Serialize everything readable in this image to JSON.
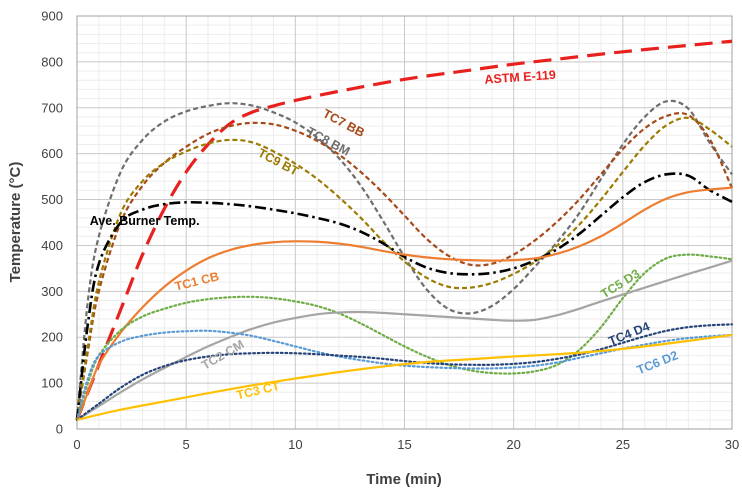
{
  "chart_data": {
    "type": "line",
    "xlabel": "Time (min)",
    "ylabel": "Temperature (°C)",
    "xlim": [
      0,
      30
    ],
    "ylim": [
      0,
      900
    ],
    "xticks": [
      "0",
      "5",
      "10",
      "15",
      "20",
      "25",
      "30"
    ],
    "yticks": [
      "0",
      "100",
      "200",
      "300",
      "400",
      "500",
      "600",
      "700",
      "800",
      "900"
    ],
    "grid": "both-major-minor",
    "series": [
      {
        "name": "ASTM E-119",
        "color": "#e8211e",
        "dash": "long-dash",
        "x": [
          0,
          1,
          2,
          3,
          4,
          5,
          6,
          7,
          8,
          9,
          10,
          12,
          15,
          18,
          20,
          22,
          25,
          28,
          30
        ],
        "y": [
          20,
          140,
          260,
          380,
          480,
          560,
          620,
          665,
          690,
          704,
          716,
          736,
          762,
          782,
          795,
          806,
          822,
          836,
          845
        ]
      },
      {
        "name": "TC8 BM",
        "color": "#6e6e6e",
        "dash": "short-dash",
        "x": [
          0,
          0.5,
          1,
          2,
          3,
          4,
          5,
          6,
          7,
          8,
          9,
          10,
          11,
          12,
          13,
          14,
          15,
          16,
          17,
          18,
          19,
          20,
          21,
          22,
          23,
          24,
          25,
          26,
          27,
          28,
          29,
          30
        ],
        "y": [
          20,
          280,
          420,
          560,
          630,
          670,
          692,
          704,
          710,
          705,
          690,
          668,
          635,
          590,
          530,
          455,
          375,
          305,
          262,
          252,
          268,
          305,
          355,
          408,
          470,
          545,
          620,
          680,
          714,
          698,
          622,
          555
        ]
      },
      {
        "name": "TC7 BB",
        "color": "#a64a1a",
        "dash": "short-dash",
        "x": [
          0,
          0.5,
          1,
          2,
          3,
          4,
          5,
          6,
          7,
          8,
          9,
          10,
          11,
          12,
          13,
          14,
          15,
          16,
          17,
          18,
          19,
          20,
          21,
          22,
          23,
          24,
          25,
          26,
          27,
          28,
          29,
          30
        ],
        "y": [
          20,
          170,
          300,
          450,
          530,
          580,
          615,
          643,
          660,
          667,
          664,
          650,
          628,
          598,
          560,
          515,
          465,
          415,
          378,
          358,
          360,
          380,
          412,
          452,
          500,
          555,
          610,
          655,
          682,
          684,
          630,
          525
        ]
      },
      {
        "name": "TC9 BT",
        "color": "#9b7b00",
        "dash": "short-dash",
        "x": [
          0,
          0.5,
          1,
          2,
          3,
          4,
          5,
          6,
          7,
          8,
          9,
          10,
          11,
          12,
          13,
          14,
          15,
          16,
          17,
          18,
          19,
          20,
          21,
          22,
          23,
          24,
          25,
          26,
          27,
          28,
          29,
          30
        ],
        "y": [
          20,
          180,
          320,
          470,
          540,
          580,
          605,
          622,
          630,
          625,
          605,
          578,
          545,
          505,
          460,
          410,
          365,
          330,
          310,
          308,
          318,
          338,
          365,
          400,
          445,
          500,
          560,
          618,
          662,
          678,
          652,
          615
        ]
      },
      {
        "name": "Ave. Burner Temp.",
        "color": "#000000",
        "dash": "dash-dot",
        "x": [
          0,
          0.5,
          1,
          2,
          3,
          4,
          5,
          6,
          7,
          8,
          9,
          10,
          11,
          12,
          13,
          14,
          15,
          16,
          17,
          18,
          19,
          20,
          21,
          22,
          23,
          24,
          25,
          26,
          27,
          28,
          29,
          30
        ],
        "y": [
          20,
          230,
          360,
          450,
          478,
          490,
          494,
          493,
          490,
          485,
          478,
          470,
          460,
          448,
          430,
          405,
          375,
          352,
          340,
          337,
          340,
          350,
          368,
          392,
          425,
          465,
          505,
          538,
          555,
          552,
          520,
          495
        ]
      },
      {
        "name": "TC1 CB",
        "color": "#ed7d31",
        "dash": "solid",
        "x": [
          0,
          0.5,
          1,
          2,
          3,
          4,
          5,
          6,
          7,
          8,
          9,
          10,
          11,
          12,
          13,
          14,
          15,
          16,
          17,
          18,
          19,
          20,
          21,
          22,
          23,
          24,
          25,
          26,
          27,
          28,
          29,
          30
        ],
        "y": [
          20,
          80,
          140,
          210,
          265,
          310,
          345,
          372,
          390,
          401,
          407,
          409,
          408,
          404,
          397,
          388,
          380,
          374,
          370,
          368,
          367,
          368,
          372,
          382,
          398,
          420,
          448,
          478,
          502,
          516,
          522,
          526
        ]
      },
      {
        "name": "TC5 D3",
        "color": "#70ad47",
        "dash": "dotted",
        "x": [
          0,
          0.5,
          1,
          2,
          3,
          4,
          5,
          6,
          7,
          8,
          9,
          10,
          11,
          12,
          13,
          14,
          15,
          16,
          17,
          18,
          19,
          20,
          21,
          22,
          23,
          24,
          25,
          26,
          27,
          28,
          29,
          30
        ],
        "y": [
          20,
          100,
          160,
          215,
          245,
          262,
          275,
          283,
          287,
          288,
          285,
          278,
          268,
          252,
          230,
          205,
          180,
          158,
          140,
          128,
          122,
          121,
          126,
          140,
          172,
          222,
          285,
          340,
          372,
          380,
          376,
          370
        ]
      },
      {
        "name": "TC2 CM",
        "color": "#a5a5a5",
        "dash": "solid",
        "x": [
          0,
          1,
          2,
          3,
          4,
          5,
          6,
          7,
          8,
          9,
          10,
          11,
          12,
          13,
          14,
          15,
          16,
          17,
          18,
          19,
          20,
          21,
          22,
          23,
          24,
          25,
          26,
          27,
          28,
          29,
          30
        ],
        "y": [
          20,
          50,
          80,
          108,
          133,
          157,
          180,
          200,
          218,
          232,
          242,
          250,
          254,
          255,
          253,
          250,
          247,
          244,
          241,
          238,
          236,
          238,
          248,
          262,
          278,
          293,
          308,
          323,
          338,
          352,
          367
        ]
      },
      {
        "name": "TC6 D2",
        "color": "#5b9bd5",
        "dash": "dotted",
        "x": [
          0,
          0.5,
          1,
          2,
          3,
          4,
          5,
          6,
          7,
          8,
          9,
          10,
          11,
          12,
          13,
          14,
          15,
          16,
          17,
          18,
          19,
          20,
          21,
          22,
          23,
          24,
          25,
          26,
          27,
          28,
          29,
          30
        ],
        "y": [
          20,
          110,
          160,
          190,
          203,
          210,
          213,
          214,
          210,
          203,
          192,
          180,
          168,
          158,
          150,
          143,
          138,
          135,
          133,
          132,
          132,
          134,
          138,
          145,
          155,
          165,
          175,
          184,
          192,
          198,
          202,
          205
        ]
      },
      {
        "name": "TC4 D4",
        "color": "#264478",
        "dash": "dotted",
        "x": [
          0,
          1,
          2,
          3,
          4,
          5,
          6,
          7,
          8,
          9,
          10,
          11,
          12,
          13,
          14,
          15,
          16,
          17,
          18,
          19,
          20,
          21,
          22,
          23,
          24,
          25,
          26,
          27,
          28,
          29,
          30
        ],
        "y": [
          20,
          55,
          90,
          118,
          137,
          150,
          158,
          163,
          165,
          166,
          165,
          163,
          160,
          157,
          153,
          148,
          144,
          141,
          140,
          140,
          142,
          146,
          153,
          162,
          174,
          188,
          202,
          214,
          222,
          226,
          228
        ]
      },
      {
        "name": "TC3 CT",
        "color": "#ffc000",
        "dash": "solid",
        "x": [
          0,
          2,
          4,
          6,
          8,
          10,
          12,
          14,
          16,
          18,
          20,
          22,
          24,
          26,
          28,
          30
        ],
        "y": [
          20,
          42,
          60,
          78,
          95,
          110,
          124,
          136,
          146,
          152,
          158,
          163,
          170,
          180,
          192,
          205
        ]
      }
    ],
    "annotations": [
      {
        "text": "ASTM E-119",
        "series": "ASTM E-119",
        "x": 20.3,
        "y": 765,
        "rotate": -4,
        "color": "#e8211e"
      },
      {
        "text": "TC7 BB",
        "series": "TC7 BB",
        "x": 12.2,
        "y": 665,
        "rotate": 28,
        "color": "#a64a1a"
      },
      {
        "text": "TC8 BM",
        "series": "TC8 BM",
        "x": 11.5,
        "y": 625,
        "rotate": 28,
        "color": "#6e6e6e"
      },
      {
        "text": "TC9 BT",
        "series": "TC9 BT",
        "x": 9.2,
        "y": 580,
        "rotate": 28,
        "color": "#9b7b00"
      },
      {
        "text": "Ave. Burner Temp.",
        "series": "Ave. Burner Temp.",
        "x": 3.1,
        "y": 452,
        "rotate": 0,
        "color": "#000000"
      },
      {
        "text": "TC1 CB",
        "series": "TC1 CB",
        "x": 5.5,
        "y": 320,
        "rotate": -14,
        "color": "#ed7d31"
      },
      {
        "text": "TC5 D3",
        "series": "TC5 D3",
        "x": 24.9,
        "y": 315,
        "rotate": -32,
        "color": "#70ad47"
      },
      {
        "text": "TC2 CM",
        "series": "TC2 CM",
        "x": 6.7,
        "y": 160,
        "rotate": -30,
        "color": "#a5a5a5"
      },
      {
        "text": "TC4 D4",
        "series": "TC4 D4",
        "x": 25.3,
        "y": 206,
        "rotate": -22,
        "color": "#264478"
      },
      {
        "text": "TC6 D2",
        "series": "TC6 D2",
        "x": 26.6,
        "y": 143,
        "rotate": -22,
        "color": "#5b9bd5"
      },
      {
        "text": "TC3 CT",
        "series": "TC3 CT",
        "x": 8.3,
        "y": 82,
        "rotate": -13,
        "color": "#ffc000"
      }
    ]
  }
}
